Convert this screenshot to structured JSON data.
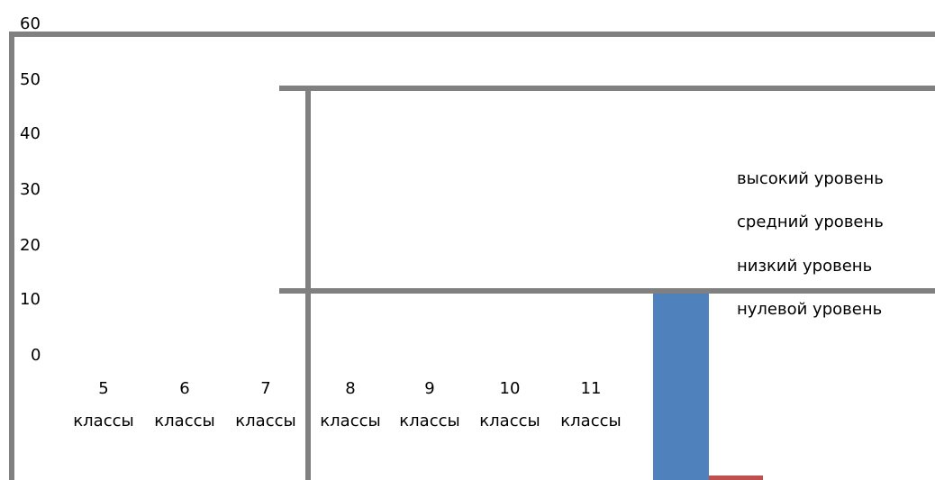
{
  "chart_data": {
    "type": "bar",
    "title": "",
    "xlabel": "",
    "ylabel": "",
    "y_ticks": [
      "60",
      "50",
      "40",
      "30",
      "20",
      "10",
      "0"
    ],
    "categories": [
      {
        "num": "5",
        "word": "классы"
      },
      {
        "num": "6",
        "word": "классы"
      },
      {
        "num": "7",
        "word": "классы"
      },
      {
        "num": "8",
        "word": "классы"
      },
      {
        "num": "9",
        "word": "классы"
      },
      {
        "num": "10",
        "word": "классы"
      },
      {
        "num": "11",
        "word": "классы"
      }
    ],
    "legend": {
      "position": "right",
      "entries": [
        "высокий уровень",
        "средний уровень",
        "низкий уровень",
        "нулевой уровень"
      ]
    },
    "colors": {
      "frame": "#808080",
      "bar_blue": "#4f81bd",
      "bar_red": "#c0504d",
      "text": "#000000"
    }
  }
}
